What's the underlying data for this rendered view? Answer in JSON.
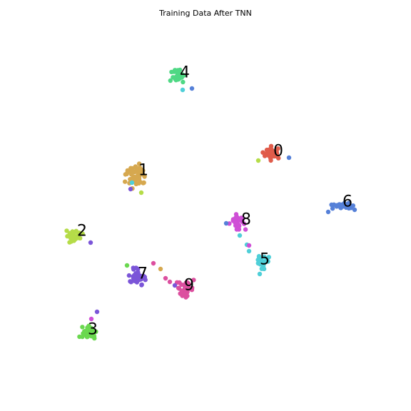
{
  "chart_data": {
    "type": "scatter",
    "title": "Training Data After TNN",
    "xlabel": "",
    "ylabel": "",
    "axes_visible": false,
    "grid": false,
    "legend": "none",
    "xlim": [
      0,
      576
    ],
    "ylim": [
      576,
      0
    ],
    "clusters": [
      {
        "label": "0",
        "color": "#e05c4b",
        "center": [
          382,
          216
        ],
        "spread": [
          12,
          8
        ],
        "count": 30,
        "outliers": [
          {
            "x": 405,
            "y": 221,
            "color": "#5580d8"
          },
          {
            "x": 362,
            "y": 225,
            "color": "#b5dc48"
          }
        ]
      },
      {
        "label": "1",
        "color": "#d6a84f",
        "center": [
          190,
          245
        ],
        "spread": [
          13,
          14
        ],
        "count": 45,
        "outliers": [
          {
            "x": 185,
            "y": 256,
            "color": "#4fcfd8"
          },
          {
            "x": 183,
            "y": 265,
            "color": "#7b55d8"
          },
          {
            "x": 198,
            "y": 270,
            "color": "#b5dc48"
          }
        ]
      },
      {
        "label": "2",
        "color": "#b5dc48",
        "center": [
          104,
          330
        ],
        "spread": [
          10,
          8
        ],
        "count": 32,
        "outliers": [
          {
            "x": 127,
            "y": 340,
            "color": "#7b55d8"
          }
        ]
      },
      {
        "label": "3",
        "color": "#6ad84f",
        "center": [
          124,
          466
        ],
        "spread": [
          10,
          10
        ],
        "count": 35,
        "outliers": [
          {
            "x": 136,
            "y": 437,
            "color": "#7b55d8"
          },
          {
            "x": 128,
            "y": 447,
            "color": "#cf4fd6"
          }
        ]
      },
      {
        "label": "4",
        "color": "#4fd884",
        "center": [
          250,
          106
        ],
        "spread": [
          8,
          11
        ],
        "count": 35,
        "outliers": [
          {
            "x": 269,
            "y": 124,
            "color": "#5580d8"
          },
          {
            "x": 256,
            "y": 126,
            "color": "#4fcfd8"
          }
        ]
      },
      {
        "label": "5",
        "color": "#4fcfd8",
        "center": [
          367,
          368
        ],
        "spread": [
          7,
          7
        ],
        "count": 24,
        "outliers": [
          {
            "x": 346,
            "y": 343,
            "color": "#4fcfd8"
          },
          {
            "x": 349,
            "y": 352,
            "color": "#4fcfd8"
          },
          {
            "x": 364,
            "y": 384,
            "color": "#4fcfd8"
          }
        ]
      },
      {
        "label": "6",
        "color": "#5580d8",
        "center": [
          478,
          289
        ],
        "spread": [
          12,
          5
        ],
        "count": 24,
        "outliers": [
          {
            "x": 460,
            "y": 297,
            "color": "#5580d8"
          },
          {
            "x": 497,
            "y": 294,
            "color": "#5580d8"
          }
        ]
      },
      {
        "label": "8",
        "color": "#cf4fd6",
        "center": [
          334,
          312
        ],
        "spread": [
          9,
          10
        ],
        "count": 30,
        "outliers": [
          {
            "x": 349,
            "y": 344,
            "color": "#cf4fd6"
          },
          {
            "x": 336,
            "y": 330,
            "color": "#4fcfd8"
          },
          {
            "x": 317,
            "y": 313,
            "color": "#5580d8"
          }
        ]
      },
      {
        "label": "7",
        "color": "#7b55d8",
        "center": [
          193,
          388
        ],
        "spread": [
          11,
          9
        ],
        "count": 35,
        "outliers": [
          {
            "x": 178,
            "y": 372,
            "color": "#6ad84f"
          },
          {
            "x": 215,
            "y": 369,
            "color": "#dc4f9f"
          },
          {
            "x": 225,
            "y": 377,
            "color": "#d6a84f"
          },
          {
            "x": 232,
            "y": 390,
            "color": "#dc4f9f"
          }
        ]
      },
      {
        "label": "9",
        "color": "#dc4f9f",
        "center": [
          259,
          405
        ],
        "spread": [
          10,
          9
        ],
        "count": 40,
        "outliers": [
          {
            "x": 238,
            "y": 395,
            "color": "#dc4f9f"
          },
          {
            "x": 245,
            "y": 400,
            "color": "#7b55d8"
          }
        ]
      }
    ],
    "label_positions": [
      {
        "label": "0",
        "x": 390,
        "y": 212
      },
      {
        "label": "1",
        "x": 201,
        "y": 239
      },
      {
        "label": "2",
        "x": 115,
        "y": 324
      },
      {
        "label": "3",
        "x": 130,
        "y": 462
      },
      {
        "label": "4",
        "x": 259,
        "y": 102
      },
      {
        "label": "5",
        "x": 371,
        "y": 364
      },
      {
        "label": "6",
        "x": 487,
        "y": 283
      },
      {
        "label": "7",
        "x": 200,
        "y": 384
      },
      {
        "label": "8",
        "x": 345,
        "y": 308
      },
      {
        "label": "9",
        "x": 265,
        "y": 400
      }
    ]
  }
}
